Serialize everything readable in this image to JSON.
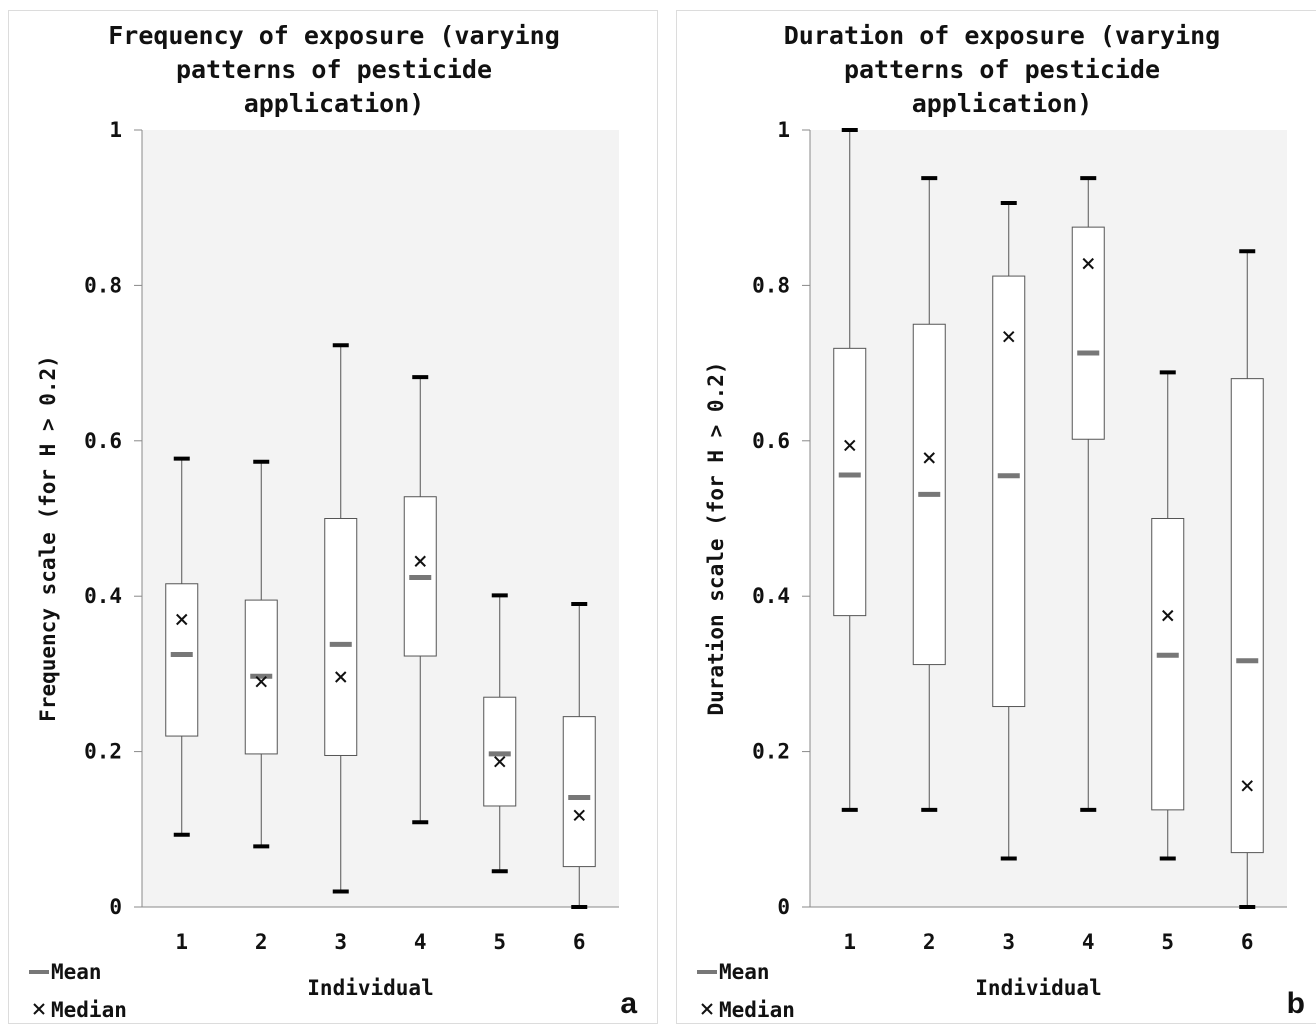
{
  "chart_data": [
    {
      "type": "box",
      "title": [
        "Frequency of exposure (varying",
        "patterns of pesticide",
        "application)"
      ],
      "xlabel": "Individual",
      "ylabel": "Frequency scale (for H > 0.2)",
      "ylim": [
        0,
        1
      ],
      "yticks": [
        "0",
        "0.2",
        "0.4",
        "0.6",
        "0.8",
        "1"
      ],
      "categories": [
        "1",
        "2",
        "3",
        "4",
        "5",
        "6"
      ],
      "boxes": [
        {
          "min": 0.093,
          "q1": 0.22,
          "median": 0.37,
          "q3": 0.416,
          "max": 0.577,
          "mean": 0.325
        },
        {
          "min": 0.078,
          "q1": 0.197,
          "median": 0.29,
          "q3": 0.395,
          "max": 0.573,
          "mean": 0.297
        },
        {
          "min": 0.02,
          "q1": 0.195,
          "median": 0.296,
          "q3": 0.5,
          "max": 0.723,
          "mean": 0.338
        },
        {
          "min": 0.109,
          "q1": 0.323,
          "median": 0.445,
          "q3": 0.528,
          "max": 0.682,
          "mean": 0.424
        },
        {
          "min": 0.046,
          "q1": 0.13,
          "median": 0.187,
          "q3": 0.27,
          "max": 0.401,
          "mean": 0.197
        },
        {
          "min": 0.0,
          "q1": 0.052,
          "median": 0.118,
          "q3": 0.245,
          "max": 0.39,
          "mean": 0.141
        }
      ],
      "legend": {
        "mean": "Mean",
        "median": "Median"
      },
      "panel_label": "a",
      "colors": {
        "background": "#f3f3f3",
        "box": "#ffffff",
        "outline": "#555555",
        "mean": "#777777",
        "whisker_cap": "#000000"
      }
    },
    {
      "type": "box",
      "title": [
        "Duration of exposure (varying",
        "patterns of pesticide",
        "application)"
      ],
      "xlabel": "Individual",
      "ylabel": "Duration scale (for H > 0.2)",
      "ylim": [
        0,
        1
      ],
      "yticks": [
        "0",
        "0.2",
        "0.4",
        "0.6",
        "0.8",
        "1"
      ],
      "categories": [
        "1",
        "2",
        "3",
        "4",
        "5",
        "6"
      ],
      "boxes": [
        {
          "min": 0.125,
          "q1": 0.375,
          "median": 0.594,
          "q3": 0.719,
          "max": 1.0,
          "mean": 0.556
        },
        {
          "min": 0.125,
          "q1": 0.312,
          "median": 0.578,
          "q3": 0.75,
          "max": 0.938,
          "mean": 0.531
        },
        {
          "min": 0.0625,
          "q1": 0.258,
          "median": 0.734,
          "q3": 0.812,
          "max": 0.906,
          "mean": 0.555
        },
        {
          "min": 0.125,
          "q1": 0.602,
          "median": 0.828,
          "q3": 0.875,
          "max": 0.938,
          "mean": 0.713
        },
        {
          "min": 0.0625,
          "q1": 0.125,
          "median": 0.375,
          "q3": 0.5,
          "max": 0.688,
          "mean": 0.324
        },
        {
          "min": 0.0,
          "q1": 0.07,
          "median": 0.156,
          "q3": 0.68,
          "max": 0.844,
          "mean": 0.317
        }
      ],
      "legend": {
        "mean": "Mean",
        "median": "Median"
      },
      "panel_label": "b",
      "colors": {
        "background": "#f3f3f3",
        "box": "#ffffff",
        "outline": "#555555",
        "mean": "#777777",
        "whisker_cap": "#000000"
      }
    }
  ]
}
